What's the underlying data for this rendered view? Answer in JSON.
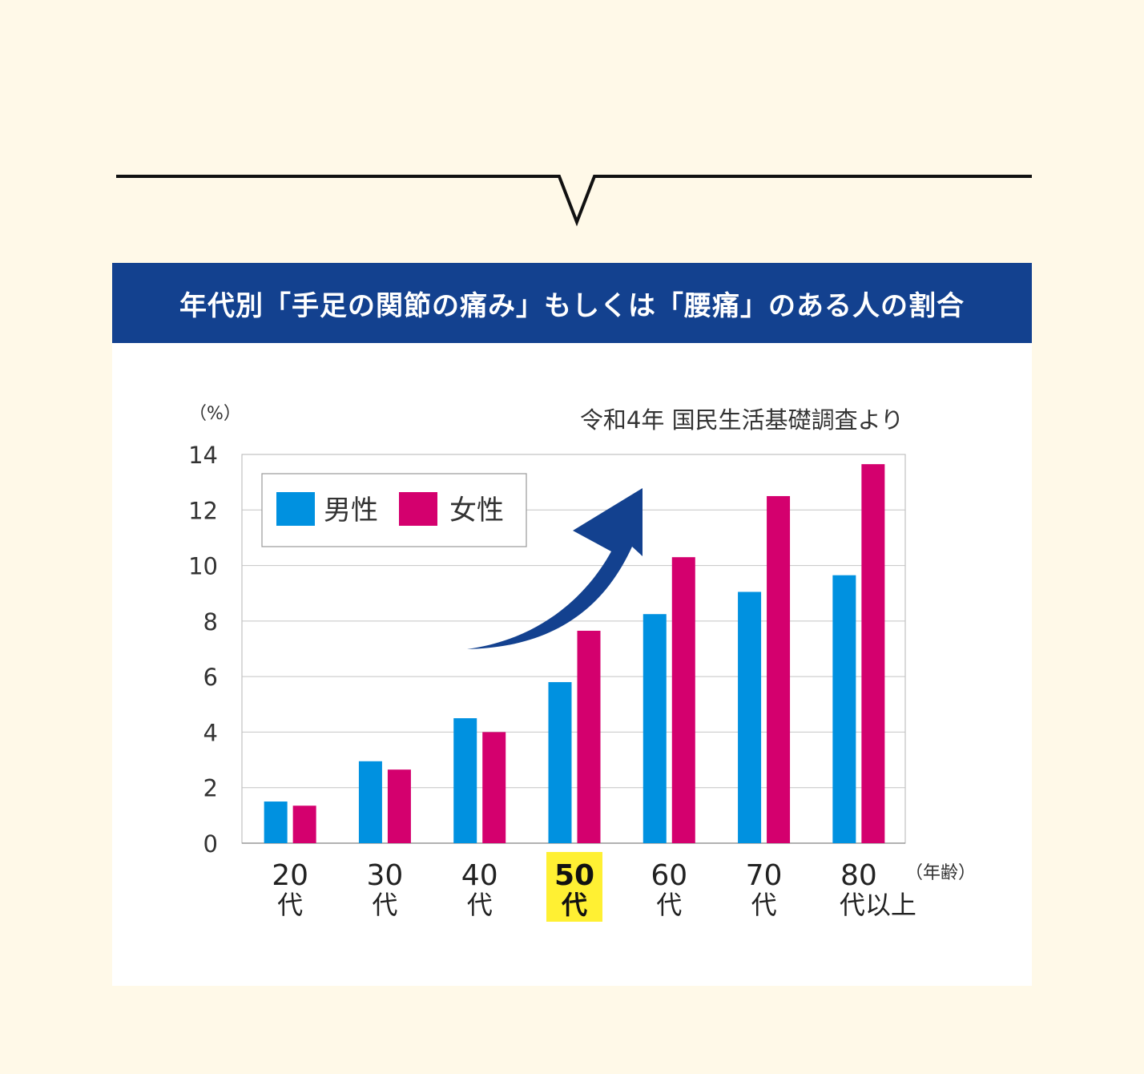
{
  "title": "年代別「手足の関節の痛み」もしくは「腰痛」のある人の割合",
  "colors": {
    "background": "#fff9e8",
    "title_bar": "#13418f",
    "male": "#0091e0",
    "female": "#d4006e",
    "highlight": "#fff033",
    "arrow": "#13418f"
  },
  "chart_data": {
    "type": "bar",
    "source": "令和4年 国民生活基礎調査より",
    "ylabel": "（%）",
    "xlabel": "（年齢）",
    "ylim": [
      0,
      14
    ],
    "yticks": [
      "0",
      "2",
      "4",
      "6",
      "8",
      "10",
      "12",
      "14"
    ],
    "categories": [
      {
        "num": "20",
        "suffix": "代"
      },
      {
        "num": "30",
        "suffix": "代"
      },
      {
        "num": "40",
        "suffix": "代"
      },
      {
        "num": "50",
        "suffix": "代"
      },
      {
        "num": "60",
        "suffix": "代"
      },
      {
        "num": "70",
        "suffix": "代"
      },
      {
        "num": "80",
        "suffix": "代以上"
      }
    ],
    "highlight_category": "50代",
    "series": [
      {
        "name": "男性",
        "color": "#0091e0",
        "values": [
          1.5,
          2.95,
          4.5,
          5.8,
          8.25,
          9.05,
          9.65
        ]
      },
      {
        "name": "女性",
        "color": "#d4006e",
        "values": [
          1.35,
          2.65,
          4.0,
          7.65,
          10.3,
          12.5,
          13.65
        ]
      }
    ],
    "legend": "top-left",
    "grid": true,
    "annotation": "upward trend arrow"
  }
}
